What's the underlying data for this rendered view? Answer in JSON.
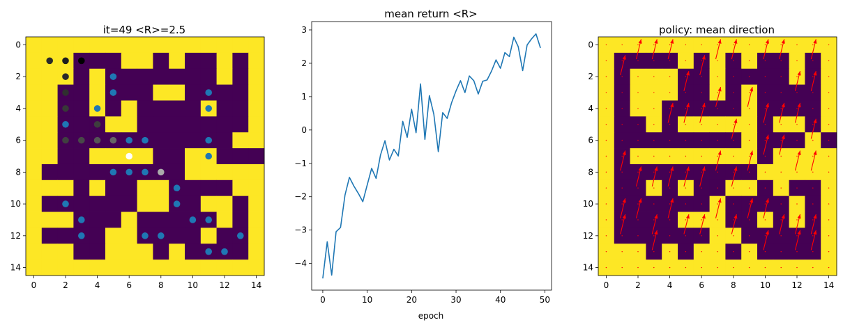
{
  "colors": {
    "wall": "#440154",
    "open": "#fde725",
    "line": "#1f77b4",
    "arrow": "#ff0000",
    "dot": "#1f77b4"
  },
  "chart_data": [
    {
      "type": "heatmap",
      "title": "it=49 <R>=2.5",
      "xlim": [
        -0.5,
        14.5
      ],
      "ylim": [
        14.5,
        -0.5
      ],
      "xticks": [
        0,
        2,
        4,
        6,
        8,
        10,
        12,
        14
      ],
      "yticks": [
        0,
        2,
        4,
        6,
        8,
        10,
        12,
        14
      ],
      "grid": [
        "000000000000000",
        "000111001011010",
        "000101111111010",
        "001101110011110",
        "001101011110110",
        "001110011111110",
        "001111111111100",
        "001100001100111",
        "011111111100000",
        "000101100111100",
        "011111100110010",
        "000111011111010",
        "011110011110110",
        "000110001011110",
        "000000000000000"
      ],
      "dots": [
        {
          "x": 1,
          "y": 1,
          "color": "#2a2a2a"
        },
        {
          "x": 2,
          "y": 1,
          "color": "#1e1e1e"
        },
        {
          "x": 3,
          "y": 1,
          "color": "#000000"
        },
        {
          "x": 2,
          "y": 2,
          "color": "#2a2a2a"
        },
        {
          "x": 2,
          "y": 3,
          "color": "#303030"
        },
        {
          "x": 2,
          "y": 4,
          "color": "#383838"
        },
        {
          "x": 2,
          "y": 6,
          "color": "#404040"
        },
        {
          "x": 3,
          "y": 6,
          "color": "#484848"
        },
        {
          "x": 4,
          "y": 5,
          "color": "#3e3e3e"
        },
        {
          "x": 4,
          "y": 6,
          "color": "#555555"
        },
        {
          "x": 5,
          "y": 6,
          "color": "#666666"
        },
        {
          "x": 6,
          "y": 7,
          "color": "#ffffff"
        },
        {
          "x": 8,
          "y": 8,
          "color": "#aaaaaa"
        },
        {
          "x": 5,
          "y": 8,
          "color": "#1f77b4"
        },
        {
          "x": 6,
          "y": 8,
          "color": "#1f77b4"
        },
        {
          "x": 7,
          "y": 8,
          "color": "#1f77b4"
        },
        {
          "x": 5,
          "y": 2,
          "color": "#1f77b4"
        },
        {
          "x": 5,
          "y": 3,
          "color": "#1f77b4"
        },
        {
          "x": 4,
          "y": 4,
          "color": "#1f77b4"
        },
        {
          "x": 2,
          "y": 5,
          "color": "#1f77b4"
        },
        {
          "x": 6,
          "y": 6,
          "color": "#1f77b4"
        },
        {
          "x": 7,
          "y": 6,
          "color": "#1f77b4"
        },
        {
          "x": 11,
          "y": 3,
          "color": "#1f77b4"
        },
        {
          "x": 11,
          "y": 4,
          "color": "#1f77b4"
        },
        {
          "x": 11,
          "y": 6,
          "color": "#1f77b4"
        },
        {
          "x": 11,
          "y": 7,
          "color": "#1f77b4"
        },
        {
          "x": 9,
          "y": 9,
          "color": "#1f77b4"
        },
        {
          "x": 9,
          "y": 10,
          "color": "#1f77b4"
        },
        {
          "x": 2,
          "y": 10,
          "color": "#1f77b4"
        },
        {
          "x": 3,
          "y": 11,
          "color": "#1f77b4"
        },
        {
          "x": 3,
          "y": 12,
          "color": "#1f77b4"
        },
        {
          "x": 7,
          "y": 12,
          "color": "#1f77b4"
        },
        {
          "x": 8,
          "y": 12,
          "color": "#1f77b4"
        },
        {
          "x": 10,
          "y": 11,
          "color": "#1f77b4"
        },
        {
          "x": 11,
          "y": 11,
          "color": "#1f77b4"
        },
        {
          "x": 13,
          "y": 12,
          "color": "#1f77b4"
        },
        {
          "x": 11,
          "y": 13,
          "color": "#1f77b4"
        },
        {
          "x": 12,
          "y": 13,
          "color": "#1f77b4"
        }
      ]
    },
    {
      "type": "line",
      "title": "mean return <R>",
      "xlabel": "epoch",
      "ylabel": "",
      "xlim": [
        -2.5,
        51.5
      ],
      "ylim": [
        -4.8,
        3.25
      ],
      "xticks": [
        0,
        10,
        20,
        30,
        40,
        50
      ],
      "yticks": [
        -4,
        -3,
        -2,
        -1,
        0,
        1,
        2,
        3
      ],
      "series": [
        {
          "x": [
            0,
            1,
            2,
            3,
            4,
            5,
            6,
            7,
            8,
            9,
            10,
            11,
            12,
            13,
            14,
            15,
            16,
            17,
            18,
            19,
            20,
            21,
            22,
            23,
            24,
            25,
            26,
            27,
            28,
            29,
            30,
            31,
            32,
            33,
            34,
            35,
            36,
            37,
            38,
            39,
            40,
            41,
            42,
            43,
            44,
            45,
            46,
            47,
            48,
            49
          ],
          "values": [
            -4.45,
            -3.35,
            -4.35,
            -3.05,
            -2.92,
            -1.95,
            -1.42,
            -1.68,
            -1.9,
            -2.15,
            -1.65,
            -1.15,
            -1.45,
            -0.75,
            -0.32,
            -0.9,
            -0.58,
            -0.78,
            0.26,
            -0.22,
            0.62,
            -0.08,
            1.38,
            -0.28,
            1.03,
            0.47,
            -0.65,
            0.52,
            0.35,
            0.82,
            1.17,
            1.48,
            1.12,
            1.62,
            1.48,
            1.08,
            1.46,
            1.5,
            1.77,
            2.1,
            1.85,
            2.32,
            2.2,
            2.78,
            2.5,
            1.78,
            2.55,
            2.73,
            2.88,
            2.46
          ]
        }
      ]
    },
    {
      "type": "heatmap",
      "title": "policy: mean direction",
      "xlim": [
        -0.5,
        14.5
      ],
      "ylim": [
        14.5,
        -0.5
      ],
      "xticks": [
        0,
        2,
        4,
        6,
        8,
        10,
        12,
        14
      ],
      "yticks": [
        0,
        2,
        4,
        6,
        8,
        10,
        12,
        14
      ],
      "grid": [
        "000000000000000",
        "011110101011010",
        "010001101111010",
        "010001101011110",
        "010011111011110",
        "011010000010010",
        "011111111011101",
        "010000000010000",
        "011111111100000",
        "011010110010110",
        "011111101111010",
        "011110001101010",
        "011111100111110",
        "000101001011110",
        "000000000000000"
      ],
      "arrows": [
        {
          "x": 1,
          "y": 1
        },
        {
          "x": 2,
          "y": 0
        },
        {
          "x": 3,
          "y": 0
        },
        {
          "x": 4,
          "y": 0
        },
        {
          "x": 5,
          "y": 2
        },
        {
          "x": 6,
          "y": 1
        },
        {
          "x": 7,
          "y": 0
        },
        {
          "x": 8,
          "y": 0
        },
        {
          "x": 10,
          "y": 0
        },
        {
          "x": 11,
          "y": 0
        },
        {
          "x": 13,
          "y": 0
        },
        {
          "x": 12,
          "y": 2
        },
        {
          "x": 13,
          "y": 2
        },
        {
          "x": 4,
          "y": 4
        },
        {
          "x": 5,
          "y": 4
        },
        {
          "x": 6,
          "y": 4
        },
        {
          "x": 7,
          "y": 3
        },
        {
          "x": 8,
          "y": 5
        },
        {
          "x": 9,
          "y": 3
        },
        {
          "x": 10,
          "y": 4
        },
        {
          "x": 11,
          "y": 4
        },
        {
          "x": 12,
          "y": 4
        },
        {
          "x": 13,
          "y": 5
        },
        {
          "x": 1,
          "y": 7
        },
        {
          "x": 2,
          "y": 8
        },
        {
          "x": 3,
          "y": 8
        },
        {
          "x": 4,
          "y": 8
        },
        {
          "x": 5,
          "y": 8
        },
        {
          "x": 6,
          "y": 8
        },
        {
          "x": 7,
          "y": 7
        },
        {
          "x": 8,
          "y": 8
        },
        {
          "x": 9,
          "y": 7
        },
        {
          "x": 10,
          "y": 6
        },
        {
          "x": 11,
          "y": 6
        },
        {
          "x": 12,
          "y": 7
        },
        {
          "x": 13,
          "y": 7
        },
        {
          "x": 1,
          "y": 10
        },
        {
          "x": 2,
          "y": 10
        },
        {
          "x": 3,
          "y": 11
        },
        {
          "x": 4,
          "y": 10
        },
        {
          "x": 5,
          "y": 11
        },
        {
          "x": 6,
          "y": 11
        },
        {
          "x": 7,
          "y": 10
        },
        {
          "x": 8,
          "y": 11
        },
        {
          "x": 9,
          "y": 10
        },
        {
          "x": 10,
          "y": 10
        },
        {
          "x": 11,
          "y": 11
        },
        {
          "x": 12,
          "y": 11
        },
        {
          "x": 13,
          "y": 11
        },
        {
          "x": 1,
          "y": 11
        },
        {
          "x": 3,
          "y": 12
        },
        {
          "x": 10,
          "y": 12
        },
        {
          "x": 12,
          "y": 12
        },
        {
          "x": 13,
          "y": 12
        }
      ]
    }
  ]
}
